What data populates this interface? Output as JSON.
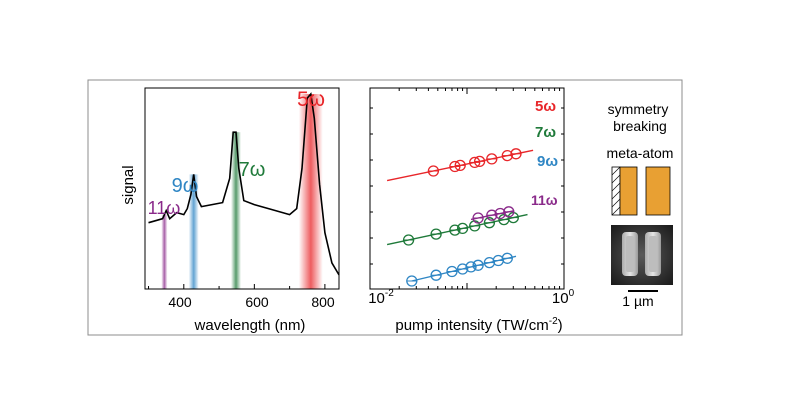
{
  "colors": {
    "red": "#e8262a",
    "green": "#1f7a3a",
    "blue": "#2f86c4",
    "purple": "#8a2a8a",
    "orange": "#e8a033",
    "black": "#000000"
  },
  "chart_data": [
    {
      "type": "line",
      "title": "",
      "xlabel": "wavelength (nm)",
      "ylabel": "signal",
      "xlim": [
        290,
        840
      ],
      "ylim": [
        0,
        1
      ],
      "xticks": [
        400,
        600,
        800
      ],
      "xtick_labels": [
        "400",
        "600",
        "800"
      ],
      "series": [
        {
          "name": "spectrum",
          "color": "#000000",
          "x": [
            300,
            320,
            340,
            350,
            360,
            380,
            400,
            410,
            420,
            428,
            436,
            450,
            480,
            510,
            530,
            540,
            548,
            556,
            570,
            600,
            640,
            680,
            700,
            720,
            735,
            750,
            760,
            770,
            785,
            800,
            820,
            840
          ],
          "y": [
            0.33,
            0.34,
            0.35,
            0.39,
            0.35,
            0.38,
            0.37,
            0.4,
            0.47,
            0.57,
            0.46,
            0.41,
            0.42,
            0.43,
            0.55,
            0.78,
            0.78,
            0.6,
            0.44,
            0.42,
            0.4,
            0.38,
            0.37,
            0.4,
            0.6,
            0.95,
            0.97,
            0.85,
            0.52,
            0.28,
            0.13,
            0.07
          ]
        }
      ],
      "bands": [
        {
          "label": "11ω",
          "center": 345,
          "color": "#8a2a8a"
        },
        {
          "label": "9ω",
          "center": 428,
          "color": "#2f86c4"
        },
        {
          "label": "7ω",
          "center": 548,
          "color": "#1f7a3a"
        },
        {
          "label": "5ω",
          "center": 760,
          "color": "#e8262a"
        }
      ],
      "annotations": [
        {
          "text": "11ω",
          "color": "#8a2a8a"
        },
        {
          "text": "9ω",
          "color": "#2f86c4"
        },
        {
          "text": "7ω",
          "color": "#1f7a3a"
        },
        {
          "text": "5ω",
          "color": "#e8262a"
        }
      ]
    },
    {
      "type": "scatter",
      "scale": "log-log",
      "title": "",
      "xlabel": "pump intensity (TW/cm",
      "xlabel_sup": "-2",
      "xlabel_end": ")",
      "ylabel": "",
      "xlim": [
        0.01,
        1
      ],
      "xtick_labels": [
        {
          "base": "10",
          "exp": "-2"
        },
        {
          "base": "10",
          "exp": "0"
        }
      ],
      "series": [
        {
          "name": "5ω",
          "color": "#e8262a",
          "x": [
            0.045,
            0.075,
            0.085,
            0.12,
            0.135,
            0.18,
            0.26,
            0.32
          ],
          "fit_x": [
            0.015,
            0.48
          ]
        },
        {
          "name": "7ω",
          "color": "#1f7a3a",
          "x": [
            0.025,
            0.048,
            0.075,
            0.09,
            0.12,
            0.17,
            0.24,
            0.3
          ],
          "fit_x": [
            0.015,
            0.42
          ]
        },
        {
          "name": "9ω",
          "color": "#2f86c4",
          "x": [
            0.027,
            0.048,
            0.07,
            0.09,
            0.11,
            0.13,
            0.17,
            0.21,
            0.26
          ],
          "fit_x": [
            0.027,
            0.32
          ]
        },
        {
          "name": "11ω",
          "color": "#8a2a8a",
          "x": [
            0.13,
            0.18,
            0.22,
            0.27
          ],
          "fit_x": [
            0.11,
            0.3
          ]
        }
      ]
    }
  ],
  "inset": {
    "title_line1": "symmetry",
    "title_line2": "breaking",
    "subtitle": "meta-atom",
    "scalebar_label": "1 µm"
  }
}
